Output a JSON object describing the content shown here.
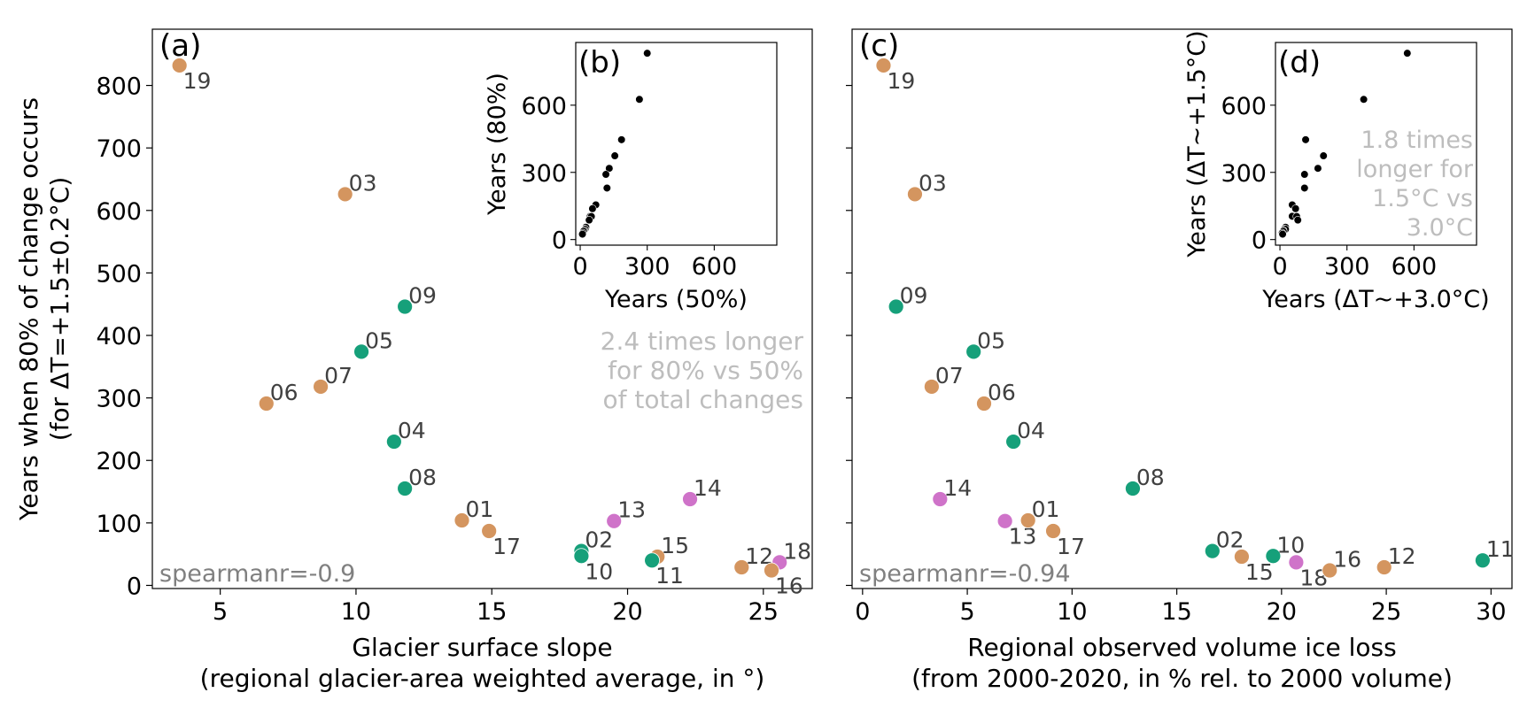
{
  "colors": {
    "orange": "#D4955F",
    "green": "#16A07A",
    "pink": "#CF73C9",
    "black": "#000000",
    "annotation_gray": "#BDBDBD",
    "stat_gray": "#808080",
    "label_gray": "#404040"
  },
  "chart_data": [
    {
      "id": "a",
      "type": "scatter",
      "panel_label": "(a)",
      "xlabel": "Glacier surface slope",
      "xlabel2": "(regional glacier-area weighted average, in °)",
      "ylabel": "Years when 80% of change occurs",
      "ylabel2": "(for ΔT=+1.5±0.2°C)",
      "xlim": [
        2.5,
        26.8
      ],
      "ylim": [
        -5,
        890
      ],
      "xticks": [
        5,
        10,
        15,
        20,
        25
      ],
      "yticks": [
        0,
        100,
        200,
        300,
        400,
        500,
        600,
        700,
        800
      ],
      "annotation": [
        "2.4 times longer",
        "for 80% vs 50%",
        "of total changes"
      ],
      "stat_text": "spearmanr=-0.9",
      "points": [
        {
          "label": "19",
          "x": 3.5,
          "y": 832,
          "group": "orange"
        },
        {
          "label": "03",
          "x": 9.6,
          "y": 626,
          "group": "orange"
        },
        {
          "label": "09",
          "x": 11.8,
          "y": 446,
          "group": "green"
        },
        {
          "label": "05",
          "x": 10.2,
          "y": 374,
          "group": "green"
        },
        {
          "label": "06",
          "x": 6.7,
          "y": 291,
          "group": "orange"
        },
        {
          "label": "07",
          "x": 8.7,
          "y": 318,
          "group": "orange"
        },
        {
          "label": "04",
          "x": 11.4,
          "y": 230,
          "group": "green"
        },
        {
          "label": "08",
          "x": 11.8,
          "y": 155,
          "group": "green"
        },
        {
          "label": "01",
          "x": 13.9,
          "y": 104,
          "group": "orange"
        },
        {
          "label": "17",
          "x": 14.9,
          "y": 87,
          "group": "orange"
        },
        {
          "label": "13",
          "x": 19.5,
          "y": 103,
          "group": "pink"
        },
        {
          "label": "14",
          "x": 22.3,
          "y": 138,
          "group": "pink"
        },
        {
          "label": "02",
          "x": 18.3,
          "y": 55,
          "group": "green"
        },
        {
          "label": "10",
          "x": 18.3,
          "y": 47,
          "group": "green"
        },
        {
          "label": "15",
          "x": 21.1,
          "y": 46,
          "group": "orange"
        },
        {
          "label": "11",
          "x": 20.9,
          "y": 40,
          "group": "green"
        },
        {
          "label": "12",
          "x": 24.2,
          "y": 29,
          "group": "orange"
        },
        {
          "label": "18",
          "x": 25.6,
          "y": 37,
          "group": "pink"
        },
        {
          "label": "16",
          "x": 25.3,
          "y": 24,
          "group": "orange"
        }
      ]
    },
    {
      "id": "c",
      "type": "scatter",
      "panel_label": "(c)",
      "xlabel": "Regional observed volume ice loss",
      "xlabel2": "(from 2000-2020,  in % rel. to 2000 volume)",
      "ylabel": "",
      "ylabel2": "",
      "xlim": [
        -0.5,
        31
      ],
      "ylim": [
        -5,
        890
      ],
      "xticks": [
        0,
        5,
        10,
        15,
        20,
        25,
        30
      ],
      "yticks": [
        0,
        100,
        200,
        300,
        400,
        500,
        600,
        700,
        800
      ],
      "stat_text": "spearmanr=-0.94",
      "points": [
        {
          "label": "19",
          "x": 1.0,
          "y": 832,
          "group": "orange"
        },
        {
          "label": "03",
          "x": 2.5,
          "y": 626,
          "group": "orange"
        },
        {
          "label": "09",
          "x": 1.6,
          "y": 446,
          "group": "green"
        },
        {
          "label": "05",
          "x": 5.3,
          "y": 374,
          "group": "green"
        },
        {
          "label": "07",
          "x": 3.3,
          "y": 318,
          "group": "orange"
        },
        {
          "label": "06",
          "x": 5.8,
          "y": 291,
          "group": "orange"
        },
        {
          "label": "04",
          "x": 7.2,
          "y": 230,
          "group": "green"
        },
        {
          "label": "08",
          "x": 12.9,
          "y": 155,
          "group": "green"
        },
        {
          "label": "14",
          "x": 3.7,
          "y": 138,
          "group": "pink"
        },
        {
          "label": "13",
          "x": 6.8,
          "y": 103,
          "group": "pink"
        },
        {
          "label": "01",
          "x": 7.9,
          "y": 104,
          "group": "orange"
        },
        {
          "label": "17",
          "x": 9.1,
          "y": 87,
          "group": "orange"
        },
        {
          "label": "02",
          "x": 16.7,
          "y": 55,
          "group": "green"
        },
        {
          "label": "15",
          "x": 18.1,
          "y": 46,
          "group": "orange"
        },
        {
          "label": "10",
          "x": 19.6,
          "y": 47,
          "group": "green"
        },
        {
          "label": "18",
          "x": 20.7,
          "y": 37,
          "group": "pink"
        },
        {
          "label": "16",
          "x": 22.3,
          "y": 24,
          "group": "orange"
        },
        {
          "label": "12",
          "x": 24.9,
          "y": 29,
          "group": "orange"
        },
        {
          "label": "11",
          "x": 29.6,
          "y": 40,
          "group": "green"
        }
      ]
    },
    {
      "id": "b",
      "type": "scatter",
      "panel_label": "(b)",
      "xlabel": "Years (50%)",
      "ylabel": "Years (80%)",
      "xlim": [
        -20,
        880
      ],
      "ylim": [
        -25,
        880
      ],
      "xticks": [
        0,
        300,
        600
      ],
      "yticks": [
        0,
        300,
        600
      ],
      "points": [
        {
          "x": 300,
          "y": 832
        },
        {
          "x": 265,
          "y": 626
        },
        {
          "x": 185,
          "y": 446
        },
        {
          "x": 155,
          "y": 374
        },
        {
          "x": 130,
          "y": 318
        },
        {
          "x": 115,
          "y": 291
        },
        {
          "x": 120,
          "y": 230
        },
        {
          "x": 70,
          "y": 155
        },
        {
          "x": 55,
          "y": 138
        },
        {
          "x": 45,
          "y": 104
        },
        {
          "x": 50,
          "y": 103
        },
        {
          "x": 40,
          "y": 87
        },
        {
          "x": 25,
          "y": 55
        },
        {
          "x": 20,
          "y": 47
        },
        {
          "x": 22,
          "y": 46
        },
        {
          "x": 18,
          "y": 40
        },
        {
          "x": 15,
          "y": 37
        },
        {
          "x": 12,
          "y": 29
        },
        {
          "x": 10,
          "y": 24
        }
      ]
    },
    {
      "id": "d",
      "type": "scatter",
      "panel_label": "(d)",
      "xlabel": "Years (ΔT~+3.0°C)",
      "ylabel": "Years (ΔT~+1.5°C)",
      "xlim": [
        -20,
        880
      ],
      "ylim": [
        -25,
        880
      ],
      "xticks": [
        0,
        300,
        600
      ],
      "yticks": [
        0,
        300,
        600
      ],
      "annotation": [
        "1.8 times",
        "longer for",
        "1.5°C vs",
        "3.0°C"
      ],
      "points": [
        {
          "x": 570,
          "y": 832
        },
        {
          "x": 375,
          "y": 626
        },
        {
          "x": 115,
          "y": 446
        },
        {
          "x": 195,
          "y": 374
        },
        {
          "x": 170,
          "y": 318
        },
        {
          "x": 110,
          "y": 291
        },
        {
          "x": 110,
          "y": 230
        },
        {
          "x": 55,
          "y": 155
        },
        {
          "x": 70,
          "y": 138
        },
        {
          "x": 55,
          "y": 104
        },
        {
          "x": 75,
          "y": 103
        },
        {
          "x": 80,
          "y": 87
        },
        {
          "x": 25,
          "y": 55
        },
        {
          "x": 20,
          "y": 47
        },
        {
          "x": 25,
          "y": 46
        },
        {
          "x": 15,
          "y": 40
        },
        {
          "x": 15,
          "y": 37
        },
        {
          "x": 10,
          "y": 29
        },
        {
          "x": 12,
          "y": 24
        }
      ]
    }
  ]
}
